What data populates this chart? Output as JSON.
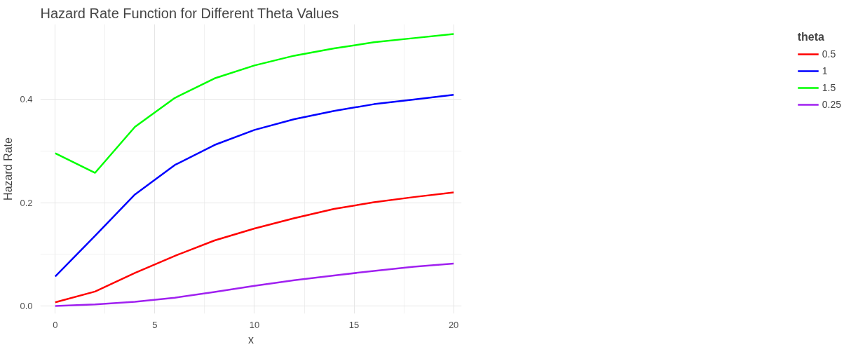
{
  "chart_data": {
    "type": "line",
    "title": "Hazard Rate Function for Different Theta Values",
    "xlabel": "x",
    "ylabel": "Hazard Rate",
    "legend_title": "theta",
    "legend": "right",
    "grid": true,
    "line_style": "solid",
    "marker": "none",
    "x": [
      0,
      2,
      4,
      6,
      8,
      10,
      12,
      14,
      16,
      18,
      20
    ],
    "xlim": [
      -0.75,
      20.4
    ],
    "xticks": [
      0,
      5,
      10,
      15,
      20
    ],
    "ylim": [
      -0.015,
      0.546
    ],
    "yticks": [
      {
        "value": 0,
        "label": "0.0"
      },
      {
        "value": 0.2,
        "label": "0.2"
      },
      {
        "value": 0.4,
        "label": "0.4"
      }
    ],
    "series": [
      {
        "name": "0.5",
        "color": "#ff0000",
        "values": [
          0.007,
          0.028,
          0.064,
          0.097,
          0.127,
          0.15,
          0.17,
          0.188,
          0.201,
          0.211,
          0.22
        ]
      },
      {
        "name": "1",
        "color": "#0000ff",
        "values": [
          0.057,
          0.136,
          0.216,
          0.273,
          0.312,
          0.341,
          0.362,
          0.378,
          0.391,
          0.4,
          0.409
        ]
      },
      {
        "name": "1.5",
        "color": "#00ff00",
        "values": [
          0.296,
          0.258,
          0.347,
          0.403,
          0.441,
          0.466,
          0.485,
          0.499,
          0.511,
          0.519,
          0.527
        ]
      },
      {
        "name": "0.25",
        "color": "#a020f0",
        "values": [
          0.0,
          0.003,
          0.008,
          0.016,
          0.027,
          0.039,
          0.05,
          0.059,
          0.068,
          0.076,
          0.082
        ]
      }
    ]
  }
}
